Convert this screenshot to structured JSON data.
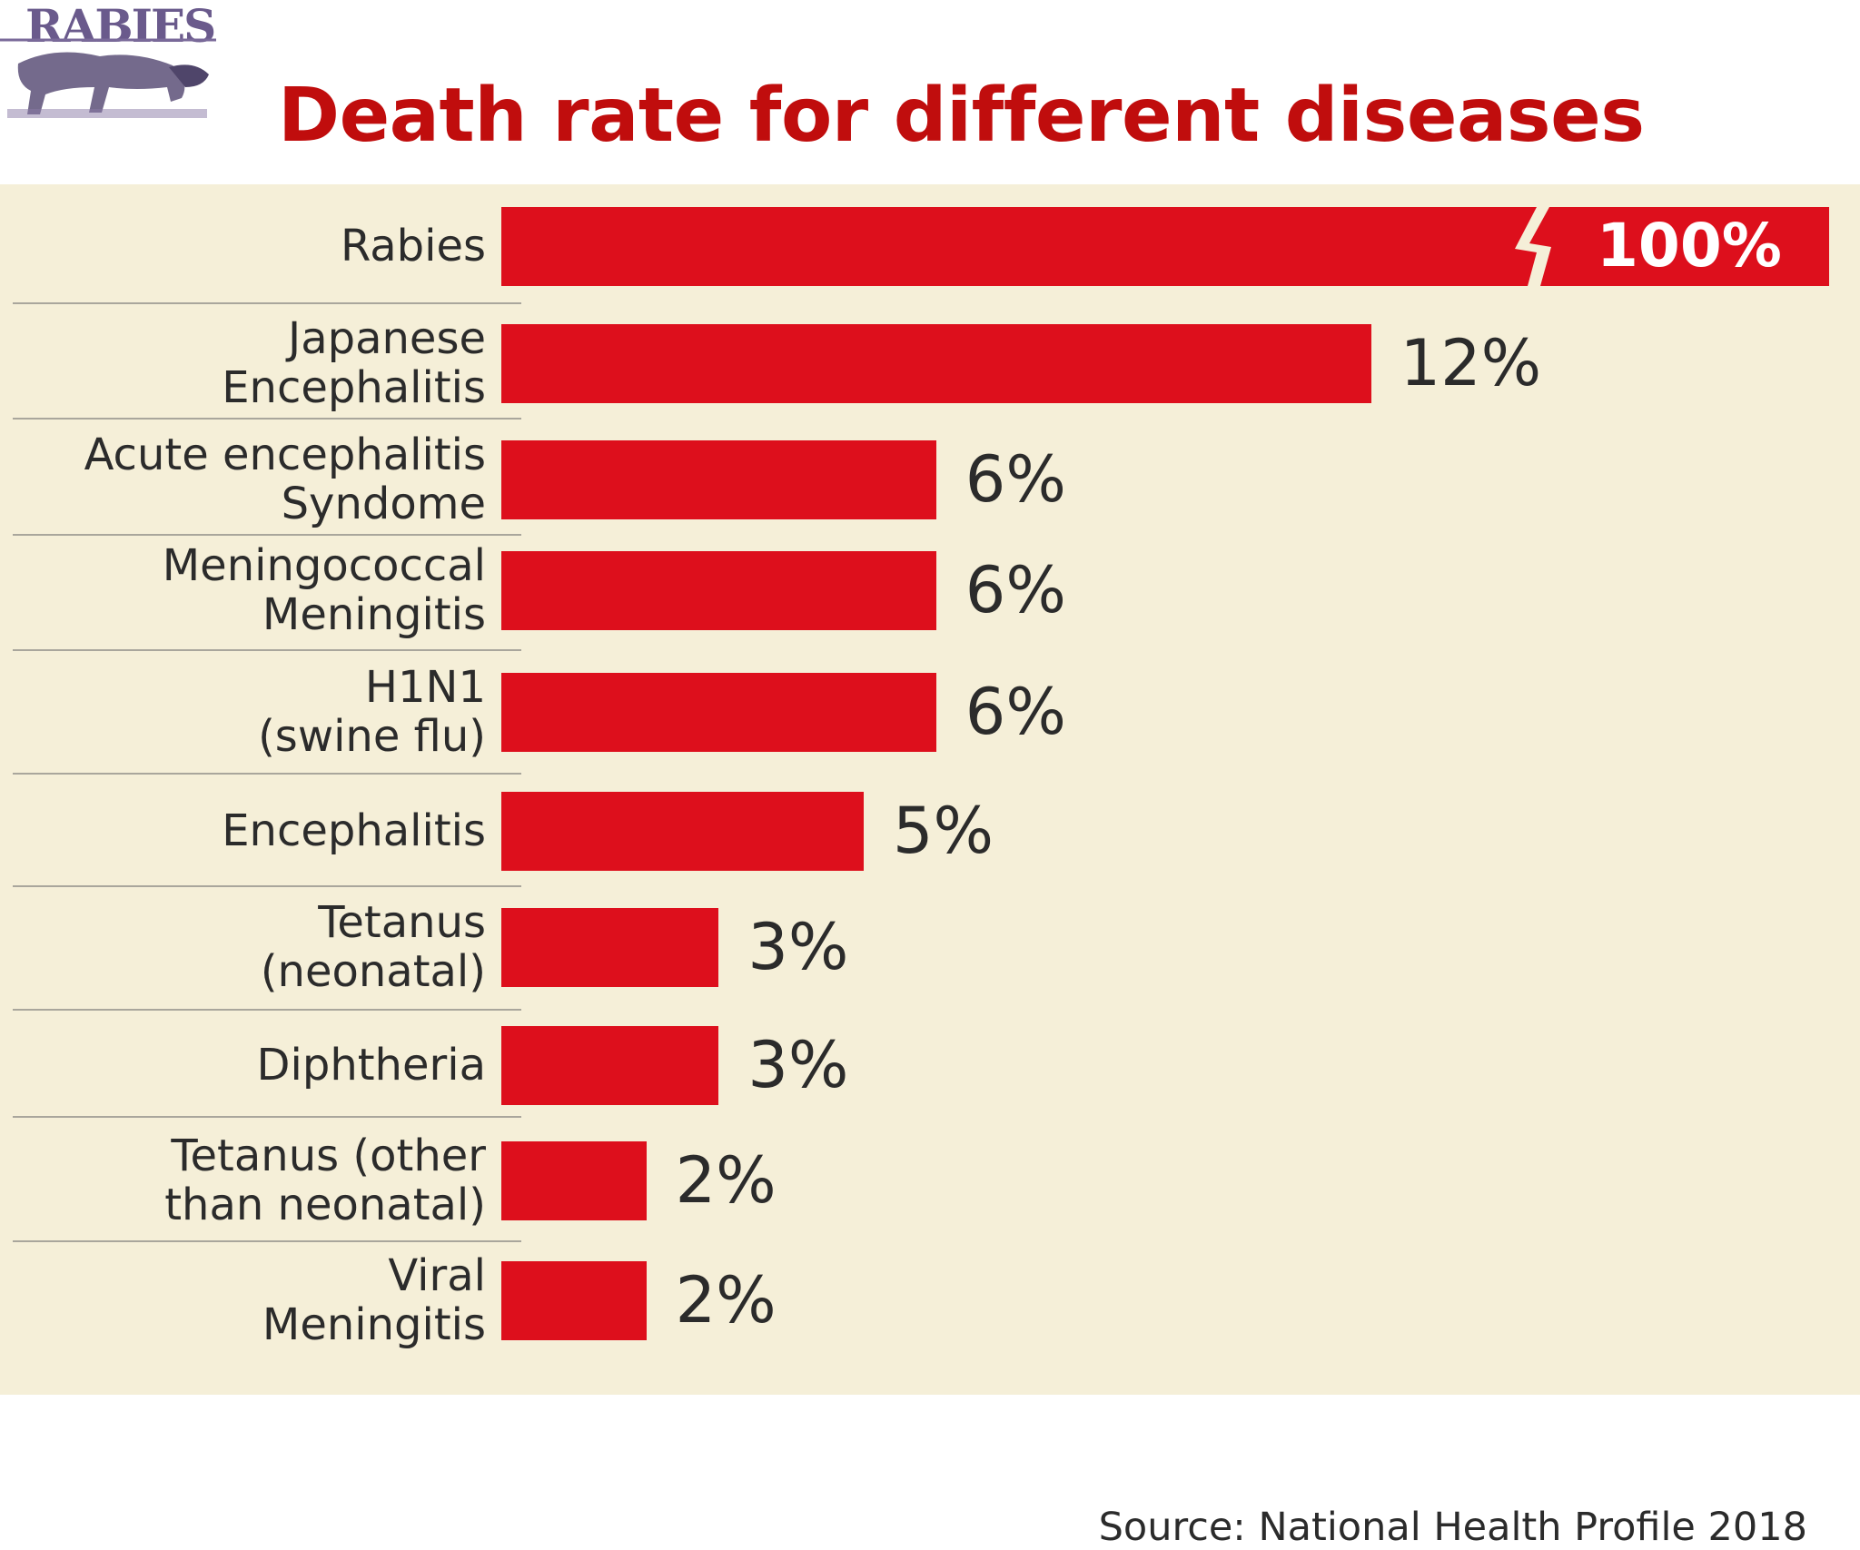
{
  "slide": {
    "logo_text": "RABIES",
    "title": "Death rate for different diseases",
    "source": "Source: National Health Profile 2018"
  },
  "colors": {
    "title": "#c00d0d",
    "bar": "#dd0f1c",
    "panel_background": "#f5efd8",
    "text": "#2b2b2b"
  },
  "chart_data": {
    "type": "bar",
    "orientation": "horizontal",
    "categories": [
      [
        "Rabies"
      ],
      [
        "Japanese",
        "Encephalitis"
      ],
      [
        "Acute encephalitis",
        "Syndome"
      ],
      [
        "Meningococcal",
        "Meningitis"
      ],
      [
        "H1N1",
        "(swine flu)"
      ],
      [
        "Encephalitis"
      ],
      [
        "Tetanus",
        "(neonatal)"
      ],
      [
        "Diphtheria"
      ],
      [
        "Tetanus (other",
        "than neonatal)"
      ],
      [
        "Viral",
        "Meningitis"
      ]
    ],
    "values": [
      100,
      12,
      6,
      6,
      6,
      5,
      3,
      3,
      2,
      2
    ],
    "value_labels": [
      "100%",
      "12%",
      "6%",
      "6%",
      "6%",
      "5%",
      "3%",
      "3%",
      "2%",
      "2%"
    ],
    "unit": "%",
    "axis_break": "first bar truncated",
    "grid": false,
    "legend": "none"
  }
}
